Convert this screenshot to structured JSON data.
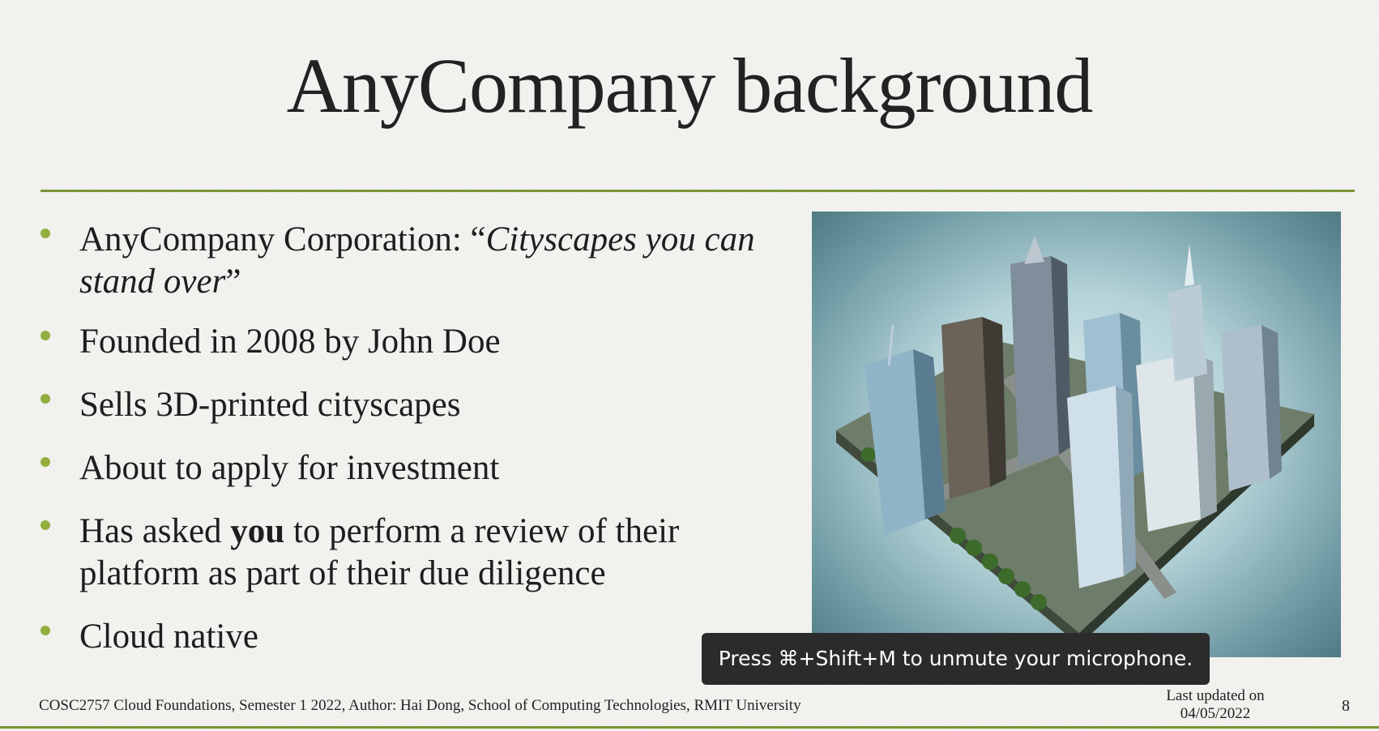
{
  "slide": {
    "title": "AnyCompany background",
    "bullets": {
      "b1_prefix": "AnyCompany Corporation: “",
      "b1_italic": "Cityscapes you can stand over",
      "b1_suffix": "”",
      "b2": "Founded in 2008 by John Doe",
      "b3": "Sells 3D-printed cityscapes",
      "b4": "About to apply for investment",
      "b5_prefix": "Has asked ",
      "b5_bold": "you",
      "b5_suffix": " to perform a review of their platform as part of their due diligence",
      "b6": "Cloud native"
    },
    "footer": "COSC2757 Cloud Foundations, Semester 1 2022, Author: Hai Dong, School of Computing Technologies, RMIT University",
    "updated_label": "Last updated on",
    "updated_date": "04/05/2022",
    "page_number": "8"
  },
  "toast": {
    "text": "Press ⌘+Shift+M to unmute your microphone."
  },
  "colors": {
    "accent": "#7b9337",
    "bullet": "#92ae3e",
    "toast_bg": "#2b2b2b"
  }
}
